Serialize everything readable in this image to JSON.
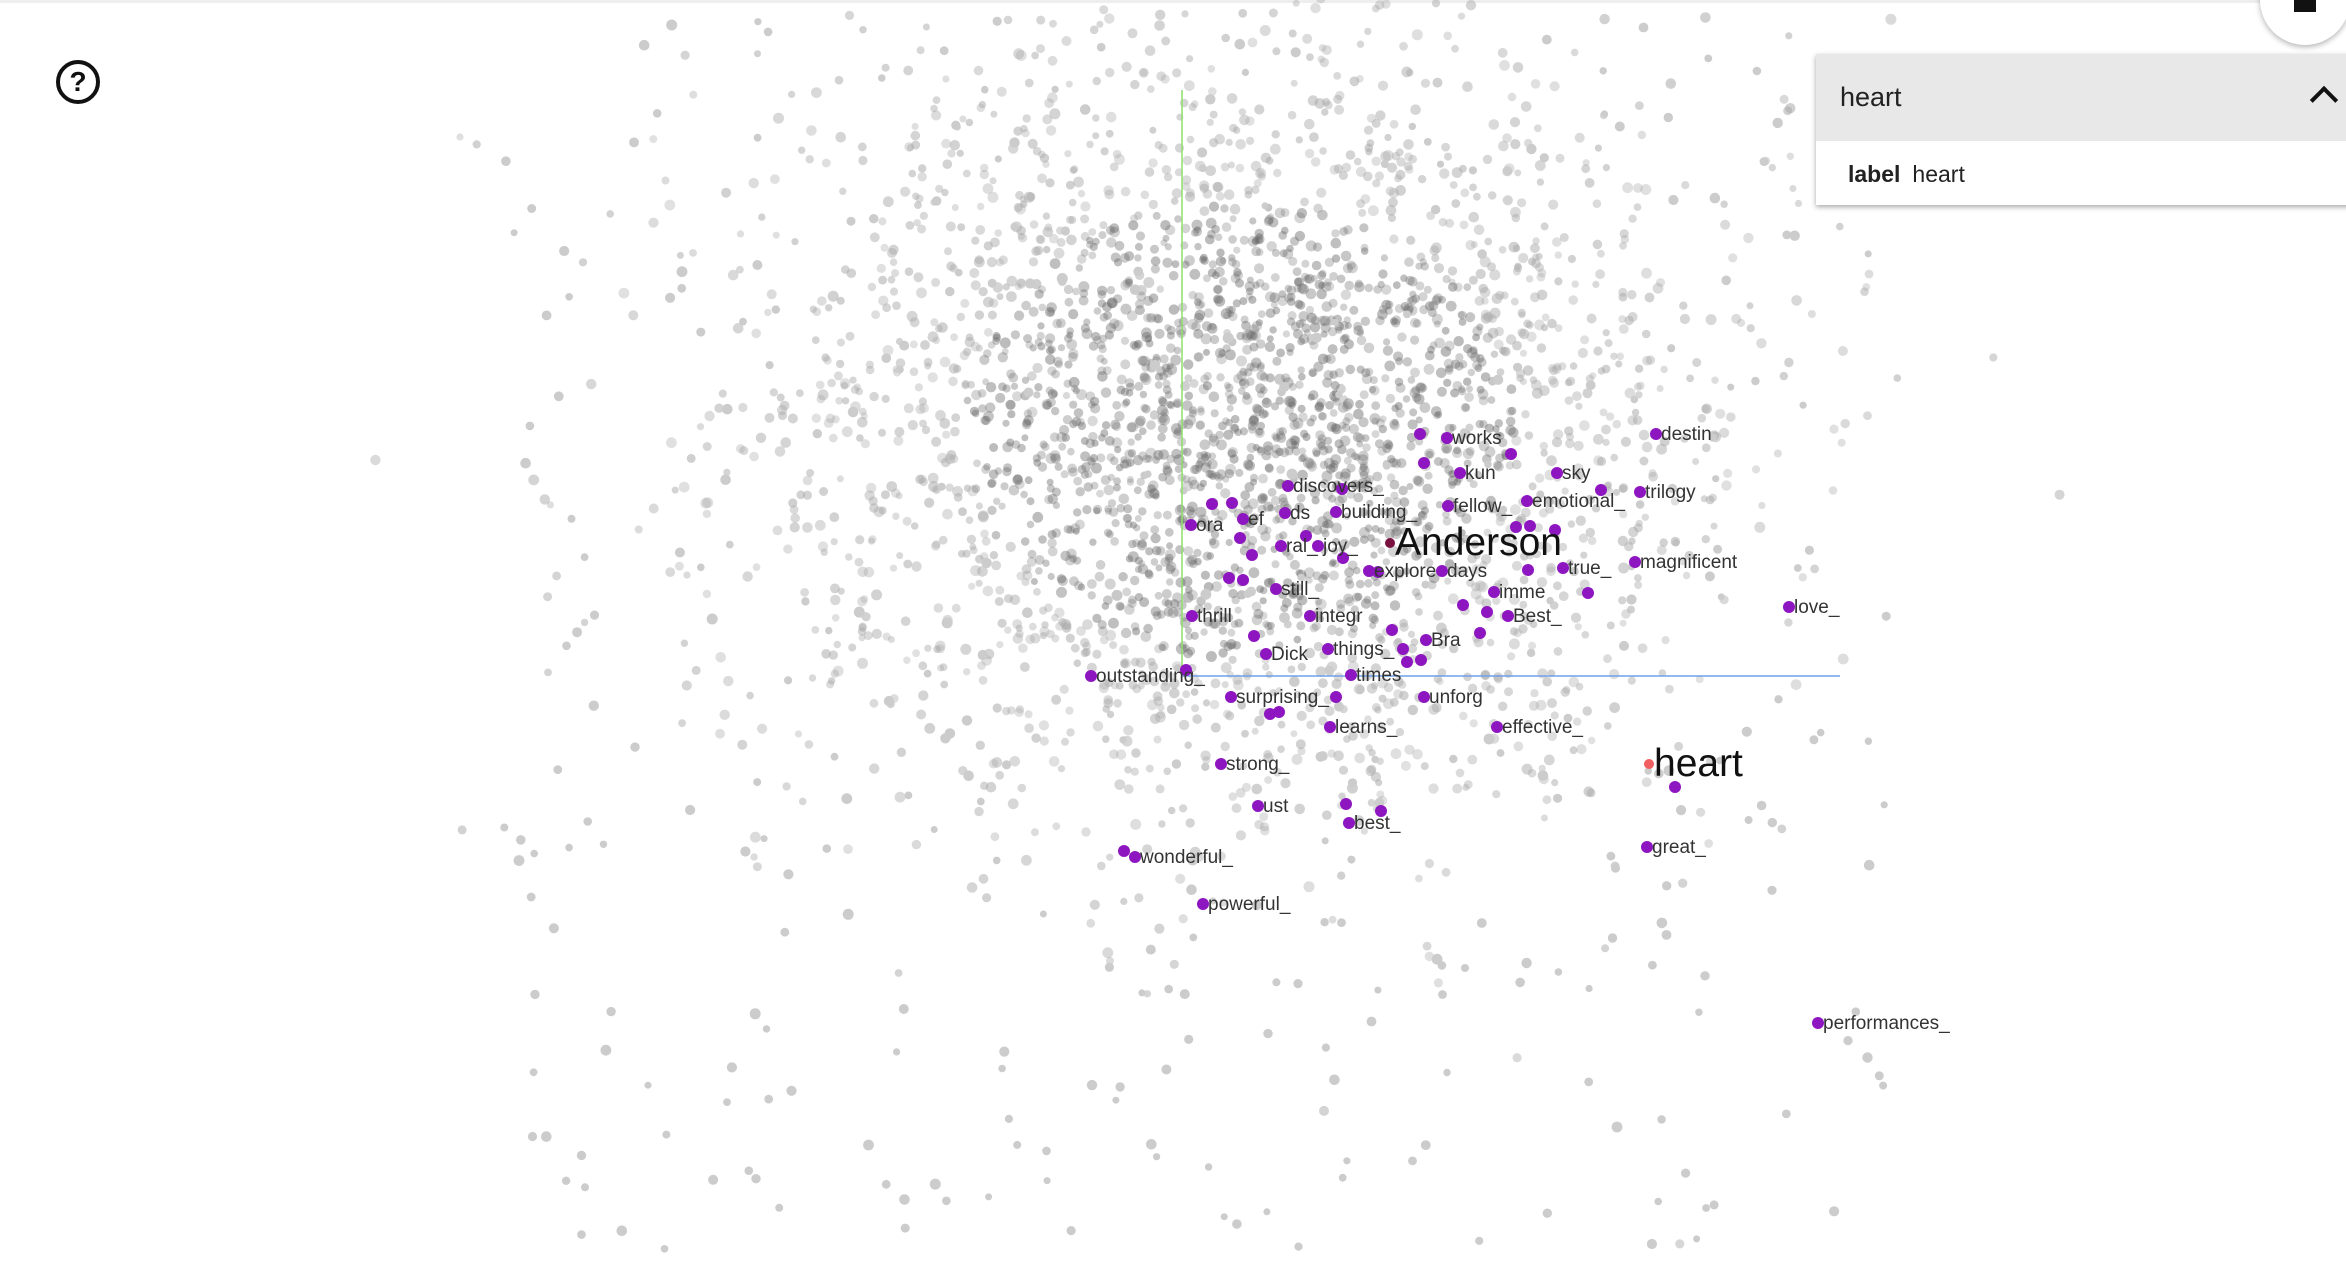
{
  "colors": {
    "highlight": "#8e16c0",
    "selected": "#f06060",
    "background_point": "#9a9a9a",
    "x_axis": "#6fa0e8",
    "y_axis": "#8ee06a"
  },
  "icons": {
    "help": "help-circle-icon",
    "home": "home-icon",
    "collapse": "chevron-up-icon"
  },
  "help_label": "?",
  "panel": {
    "title": "heart",
    "field_key": "label",
    "field_value": "heart"
  },
  "points": [
    {
      "label": "works"
    },
    {
      "label": "destin"
    },
    {
      "label": "kun"
    },
    {
      "label": "sky"
    },
    {
      "label": "trilogy"
    },
    {
      "label": "discovers_"
    },
    {
      "label": "emotional_"
    },
    {
      "label": "fellow_"
    },
    {
      "label": "building_"
    },
    {
      "label": "ds"
    },
    {
      "label": "ef"
    },
    {
      "label": "ora"
    },
    {
      "label": "Anderson",
      "emphasis": true
    },
    {
      "label": "ral_"
    },
    {
      "label": "joy_"
    },
    {
      "label": "explore"
    },
    {
      "label": "days"
    },
    {
      "label": "true_"
    },
    {
      "label": "magnificent"
    },
    {
      "label": "still_"
    },
    {
      "label": "imme"
    },
    {
      "label": "love_"
    },
    {
      "label": "thrill"
    },
    {
      "label": "integr"
    },
    {
      "label": "Best_"
    },
    {
      "label": "Bra"
    },
    {
      "label": "things_"
    },
    {
      "label": "Dick"
    },
    {
      "label": "outstanding_"
    },
    {
      "label": "times"
    },
    {
      "label": "surprising_"
    },
    {
      "label": "unforg"
    },
    {
      "label": "learns_"
    },
    {
      "label": "effective_"
    },
    {
      "label": "heart",
      "emphasis": true,
      "selected": true
    },
    {
      "label": "strong_"
    },
    {
      "label": "ust"
    },
    {
      "label": "best_"
    },
    {
      "label": "wonderful_"
    },
    {
      "label": "great_"
    },
    {
      "label": "powerful_"
    },
    {
      "label": "performances_"
    }
  ]
}
